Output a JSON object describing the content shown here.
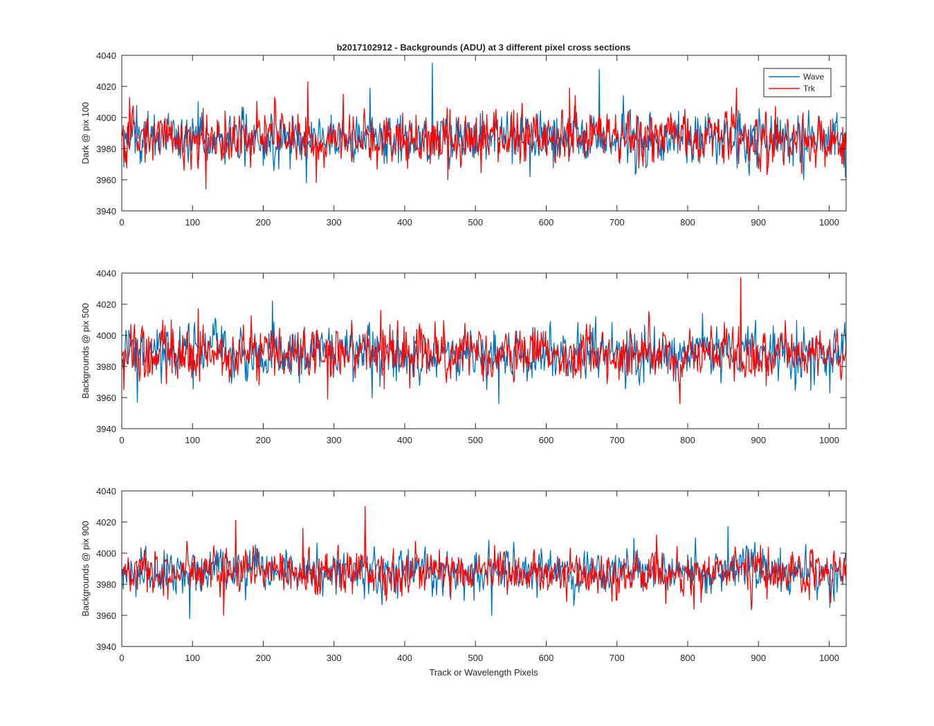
{
  "chart_data": {
    "type": "line",
    "title": "b2017102912 - Backgrounds (ADU) at 3 different pixel cross sections",
    "xlabel": "Track or Wavelength Pixels",
    "legend": {
      "placement": "top-right",
      "entries": [
        "Wave",
        "Trk"
      ]
    },
    "series_colors": {
      "Wave": "#0072BD",
      "Trk": "#FF0000"
    },
    "grid": false,
    "subplots": [
      {
        "ylabel": "Dark @ pix 100",
        "xlim": [
          0,
          1024
        ],
        "ylim": [
          3940,
          4040
        ],
        "xticks": [
          0,
          100,
          200,
          300,
          400,
          500,
          600,
          700,
          800,
          900,
          1000
        ],
        "yticks": [
          3940,
          3960,
          3980,
          4000,
          4020,
          4040
        ],
        "series": [
          {
            "name": "Wave",
            "baseline": 3987,
            "noise": 8,
            "n": 1024,
            "spikes": [
              [
                260,
                3958
              ],
              [
                350,
                4019
              ],
              [
                438,
                4035
              ],
              [
                576,
                3962
              ],
              [
                674,
                4031
              ],
              [
                963,
                3960
              ],
              [
                1020,
                3968
              ]
            ]
          },
          {
            "name": "Trk",
            "baseline": 3987,
            "noise": 8,
            "n": 1024,
            "spikes": [
              [
                10,
                4013
              ],
              [
                118,
                3954
              ],
              [
                262,
                4023
              ],
              [
                460,
                3960
              ],
              [
                632,
                4019
              ],
              [
                868,
                4019
              ],
              [
                960,
                3964
              ],
              [
                1019,
                3970
              ]
            ]
          }
        ]
      },
      {
        "ylabel": "Backgrounds @ pix 500",
        "xlim": [
          0,
          1024
        ],
        "ylim": [
          3940,
          4040
        ],
        "xticks": [
          0,
          100,
          200,
          300,
          400,
          500,
          600,
          700,
          800,
          900,
          1000
        ],
        "yticks": [
          3940,
          3960,
          3980,
          4000,
          4020,
          4040
        ],
        "series": [
          {
            "name": "Wave",
            "baseline": 3988,
            "noise": 8,
            "n": 1024,
            "spikes": [
              [
                21,
                3957
              ],
              [
                212,
                4022
              ],
              [
                532,
                3956
              ],
              [
                820,
                4014
              ],
              [
                1000,
                3963
              ]
            ]
          },
          {
            "name": "Trk",
            "baseline": 3988,
            "noise": 8,
            "n": 1024,
            "spikes": [
              [
                2,
                3965
              ],
              [
                107,
                4017
              ],
              [
                365,
                4016
              ],
              [
                788,
                3956
              ],
              [
                874,
                4037
              ],
              [
                290,
                3959
              ]
            ]
          }
        ]
      },
      {
        "ylabel": "Backgrounds @ pix 900",
        "xlim": [
          0,
          1024
        ],
        "ylim": [
          3940,
          4040
        ],
        "xticks": [
          0,
          100,
          200,
          300,
          400,
          500,
          600,
          700,
          800,
          900,
          1000
        ],
        "yticks": [
          3940,
          3960,
          3980,
          4000,
          4020,
          4040
        ],
        "series": [
          {
            "name": "Wave",
            "baseline": 3988,
            "noise": 7,
            "n": 1024,
            "spikes": [
              [
                95,
                3958
              ],
              [
                522,
                3960
              ],
              [
                856,
                4017
              ],
              [
                1000,
                3965
              ]
            ]
          },
          {
            "name": "Trk",
            "baseline": 3988,
            "noise": 7,
            "n": 1024,
            "spikes": [
              [
                160,
                4021
              ],
              [
                143,
                3960
              ],
              [
                343,
                4030
              ],
              [
                255,
                4016
              ],
              [
                808,
                3964
              ]
            ]
          }
        ]
      }
    ]
  }
}
